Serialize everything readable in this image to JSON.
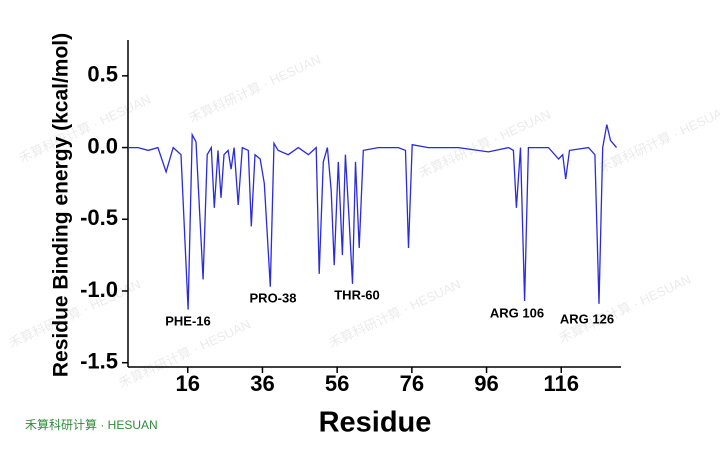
{
  "chart_data": {
    "type": "line",
    "x_label": "Residue",
    "y_label": "Residue Binding energy (kcal/mol)",
    "xlim": [
      0,
      132
    ],
    "ylim": [
      -1.53,
      0.75
    ],
    "xticks": [
      16,
      36,
      56,
      76,
      96,
      116
    ],
    "yticks": [
      0.5,
      {
        "value": 0,
        "label": "0.0"
      },
      -0.5,
      {
        "value": -1,
        "label": "-1.0"
      },
      -1.5
    ],
    "color": "#2b2bdc",
    "annotations": [
      "PHE-16",
      "PRO-38",
      "THR-60",
      "ARG 106",
      "ARG 126"
    ],
    "watermark": "禾算科研计算 · HESUAN",
    "series": [
      {
        "name": "Residue Binding energy",
        "x": [
          0,
          2.7,
          5.4,
          8.0,
          10.2,
          12.1,
          14.2,
          16.1,
          17.2,
          18.2,
          20.1,
          21.2,
          22.3,
          23.1,
          24.1,
          24.9,
          25.7,
          26.8,
          27.6,
          28.4,
          29.5,
          30.6,
          32.2,
          33.0,
          34.0,
          35.4,
          36.5,
          38.1,
          39.1,
          40.2,
          42.9,
          45.6,
          48.3,
          50.4,
          51.2,
          52.3,
          53.4,
          54.4,
          55.2,
          56.3,
          57.4,
          58.2,
          59.2,
          60.1,
          60.9,
          61.9,
          63.0,
          67.0,
          72.4,
          74.3,
          75.1,
          76.1,
          80.4,
          88.5,
          96.5,
          101.9,
          103.2,
          104.0,
          105.1,
          106.2,
          107.2,
          112.6,
          115.3,
          116.4,
          117.2,
          118.2,
          123.3,
          125.0,
          126.1,
          127.1,
          128.2,
          129.2,
          130.8
        ],
        "values": [
          0.0,
          0.0,
          -0.02,
          0.0,
          -0.17,
          0.0,
          -0.05,
          -1.13,
          0.09,
          0.04,
          -0.92,
          -0.05,
          0.0,
          -0.42,
          -0.02,
          -0.35,
          -0.05,
          -0.02,
          -0.15,
          0.0,
          -0.4,
          0.0,
          -0.02,
          -0.55,
          -0.05,
          -0.08,
          -0.25,
          -0.97,
          0.03,
          -0.02,
          -0.05,
          0.0,
          -0.05,
          0.0,
          -0.88,
          -0.1,
          0.0,
          -0.3,
          -0.82,
          -0.1,
          -0.75,
          -0.05,
          -0.5,
          -0.95,
          -0.1,
          -0.7,
          -0.02,
          0.0,
          0.0,
          -0.02,
          -0.7,
          0.02,
          0.0,
          0.0,
          -0.03,
          0.0,
          -0.02,
          -0.42,
          0.0,
          -1.07,
          0.0,
          0.0,
          -0.08,
          -0.05,
          -0.22,
          -0.02,
          0.0,
          -0.05,
          -1.09,
          0.0,
          0.16,
          0.05,
          0.0
        ]
      }
    ]
  }
}
